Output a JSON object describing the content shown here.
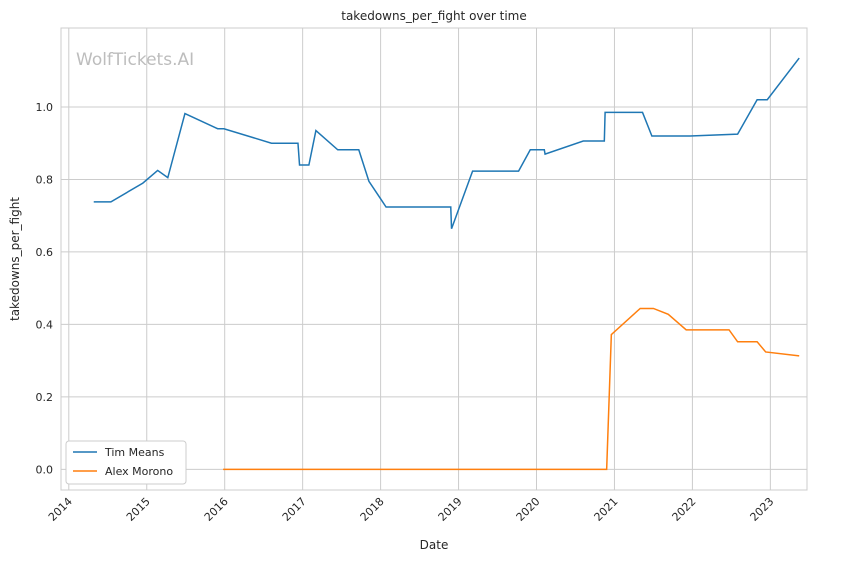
{
  "watermark": "WolfTickets.AI",
  "chart_data": {
    "type": "line",
    "title": "takedowns_per_fight over time",
    "xlabel": "Date",
    "ylabel": "takedowns_per_fight",
    "xlim": [
      2013.9,
      2023.47
    ],
    "ylim": [
      -0.057,
      1.218
    ],
    "xticks": [
      2014,
      2015,
      2016,
      2017,
      2018,
      2019,
      2020,
      2021,
      2022,
      2023
    ],
    "xtick_labels": [
      "2014",
      "2015",
      "2016",
      "2017",
      "2018",
      "2019",
      "2020",
      "2021",
      "2022",
      "2023"
    ],
    "yticks": [
      0,
      0.2,
      0.4,
      0.6,
      0.8,
      1.0
    ],
    "ytick_labels": [
      "0.0",
      "0.2",
      "0.4",
      "0.6",
      "0.8",
      "1.0"
    ],
    "grid": true,
    "legend_position": "bottom-left",
    "series": [
      {
        "name": "Tim Means",
        "color": "#1f77b4",
        "x": [
          2014.32,
          2014.54,
          2014.95,
          2015.14,
          2015.27,
          2015.49,
          2015.91,
          2015.99,
          2016.6,
          2016.94,
          2016.96,
          2017.08,
          2017.17,
          2017.45,
          2017.72,
          2017.85,
          2018.07,
          2018.9,
          2018.91,
          2019.18,
          2019.77,
          2019.92,
          2020.1,
          2020.11,
          2020.6,
          2020.87,
          2020.88,
          2021.36,
          2021.48,
          2021.97,
          2022.58,
          2022.83,
          2022.96,
          2023.37
        ],
        "y": [
          0.738,
          0.738,
          0.79,
          0.825,
          0.805,
          0.982,
          0.94,
          0.94,
          0.9,
          0.9,
          0.84,
          0.84,
          0.935,
          0.882,
          0.882,
          0.795,
          0.724,
          0.724,
          0.664,
          0.823,
          0.823,
          0.882,
          0.882,
          0.87,
          0.906,
          0.906,
          0.985,
          0.985,
          0.92,
          0.92,
          0.925,
          1.02,
          1.02,
          1.135
        ]
      },
      {
        "name": "Alex Morono",
        "color": "#ff7f0e",
        "x": [
          2015.98,
          2020.9,
          2020.96,
          2021.33,
          2021.5,
          2021.69,
          2021.92,
          2022.47,
          2022.58,
          2022.83,
          2022.94,
          2023.37
        ],
        "y": [
          0.0,
          0.0,
          0.372,
          0.444,
          0.444,
          0.428,
          0.385,
          0.385,
          0.352,
          0.352,
          0.324,
          0.313
        ]
      }
    ]
  }
}
